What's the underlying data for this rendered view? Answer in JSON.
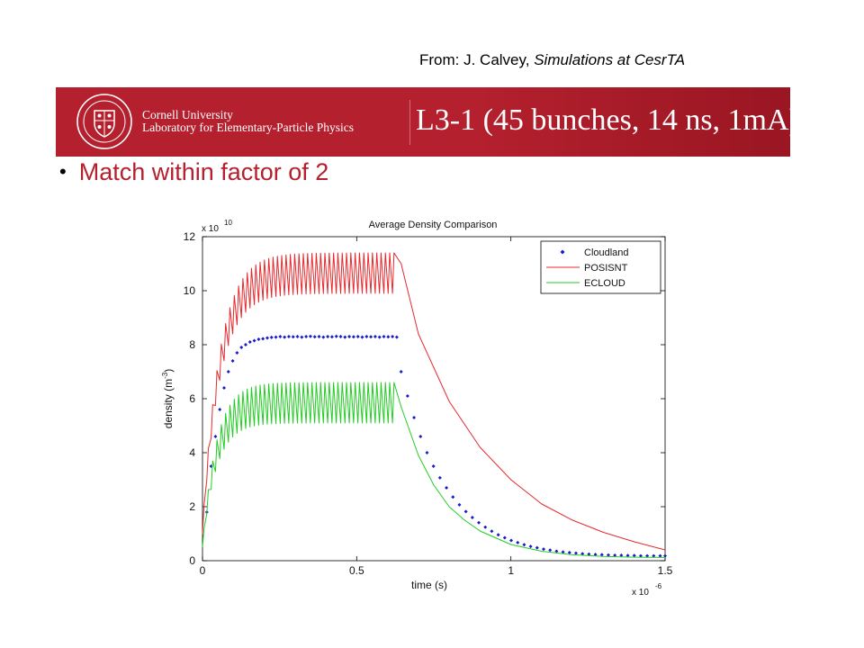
{
  "credit": {
    "prefix": "From: J. Calvey, ",
    "work": "Simulations at CesrTA"
  },
  "banner": {
    "university": "Cornell University",
    "lab": "Laboratory for Elementary-Particle Physics",
    "title": "L3-1 (45 bunches, 14 ns, 1mA)",
    "color": "#b5202e"
  },
  "bullet": "Match within factor of 2",
  "chart_data": {
    "type": "line",
    "title": "Average Density Comparison",
    "xlabel": "time (s)",
    "ylabel": "density (m",
    "ylabel_sup": "-3",
    "ylabel_end": ")",
    "x_multiplier": {
      "base": "x 10",
      "exp": "-6"
    },
    "y_multiplier": {
      "base": "x 10",
      "exp": "10"
    },
    "xlim": [
      0,
      1.5e-06
    ],
    "ylim": [
      0,
      120000000000.0
    ],
    "x_ticks": [
      0,
      0.5,
      1,
      1.5
    ],
    "x_tick_labels": [
      "0",
      "0.5",
      "1",
      "1.5"
    ],
    "y_ticks": [
      0,
      2,
      4,
      6,
      8,
      10,
      12
    ],
    "y_tick_labels": [
      "0",
      "2",
      "4",
      "6",
      "8",
      "10",
      "12"
    ],
    "grid": false,
    "legend_position": "top-right",
    "bunch_spacing_s": 1.4e-08,
    "n_bunches": 45,
    "series": [
      {
        "name": "Cloudland",
        "style": "markers",
        "color": "#1a1acc",
        "x": [
          1.4e-08,
          2.8e-08,
          4.2e-08,
          5.6e-08,
          7e-08,
          8.4e-08,
          9.8e-08,
          1.12e-07,
          1.26e-07,
          1.4e-07,
          1.54e-07,
          1.68e-07,
          1.82e-07,
          1.96e-07,
          2.1e-07,
          2.24e-07,
          2.38e-07,
          2.52e-07,
          2.66e-07,
          2.8e-07,
          2.94e-07,
          3.08e-07,
          3.22e-07,
          3.36e-07,
          3.5e-07,
          3.64e-07,
          3.78e-07,
          3.92e-07,
          4.06e-07,
          4.2e-07,
          4.34e-07,
          4.48e-07,
          4.62e-07,
          4.76e-07,
          4.9e-07,
          5.04e-07,
          5.18e-07,
          5.32e-07,
          5.46e-07,
          5.6e-07,
          5.74e-07,
          5.88e-07,
          6.02e-07,
          6.16e-07,
          6.3e-07,
          6.44e-07,
          6.65e-07,
          6.86e-07,
          7.07e-07,
          7.28e-07,
          7.49e-07,
          7.7e-07,
          7.91e-07,
          8.12e-07,
          8.33e-07,
          8.54e-07,
          8.75e-07,
          8.96e-07,
          9.17e-07,
          9.38e-07,
          9.59e-07,
          9.8e-07,
          1.001e-06,
          1.022e-06,
          1.043e-06,
          1.064e-06,
          1.085e-06,
          1.106e-06,
          1.127e-06,
          1.148e-06,
          1.169e-06,
          1.19e-06,
          1.211e-06,
          1.232e-06,
          1.253e-06,
          1.274e-06,
          1.295e-06,
          1.316e-06,
          1.337e-06,
          1.358e-06,
          1.379e-06,
          1.4e-06,
          1.421e-06,
          1.442e-06,
          1.463e-06,
          1.484e-06,
          1.5e-06
        ],
        "y": [
          18000000000.0,
          35000000000.0,
          46000000000.0,
          56000000000.0,
          64000000000.0,
          70000000000.0,
          74000000000.0,
          77000000000.0,
          79000000000.0,
          80000000000.0,
          81000000000.0,
          81500000000.0,
          82000000000.0,
          82200000000.0,
          82500000000.0,
          82700000000.0,
          82800000000.0,
          83000000000.0,
          82800000000.0,
          83000000000.0,
          82900000000.0,
          83000000000.0,
          82800000000.0,
          83000000000.0,
          83100000000.0,
          82900000000.0,
          83000000000.0,
          82800000000.0,
          83000000000.0,
          82900000000.0,
          83100000000.0,
          83000000000.0,
          82800000000.0,
          83000000000.0,
          82900000000.0,
          83000000000.0,
          82800000000.0,
          83000000000.0,
          82900000000.0,
          83000000000.0,
          82800000000.0,
          83000000000.0,
          82900000000.0,
          83000000000.0,
          82800000000.0,
          70000000000.0,
          61000000000.0,
          53000000000.0,
          46000000000.0,
          40000000000.0,
          35000000000.0,
          30700000000.0,
          27000000000.0,
          23600000000.0,
          20700000000.0,
          18200000000.0,
          16000000000.0,
          14100000000.0,
          12400000000.0,
          10900000000.0,
          9600000000.0,
          8500000000.0,
          7500000000.0,
          6700000000.0,
          5900000000.0,
          5300000000.0,
          4800000000.0,
          4300000000.0,
          3900000000.0,
          3500000000.0,
          3200000000.0,
          3000000000.0,
          2800000000.0,
          2600000000.0,
          2400000000.0,
          2300000000.0,
          2200000000.0,
          2100000000.0,
          2000000000.0,
          2000000000.0,
          1900000000.0,
          1900000000.0,
          1800000000.0,
          1800000000.0,
          1800000000.0,
          1800000000.0,
          1800000000.0
        ]
      },
      {
        "name": "POSISNT",
        "style": "line",
        "color": "#e8282c",
        "plateau_max": 114000000000.0,
        "plateau_min": 99000000000.0,
        "rise_tau_s": 5.5e-08,
        "decay_x": [
          6.44e-07,
          7e-07,
          8e-07,
          9e-07,
          1e-06,
          1.1e-06,
          1.2e-06,
          1.3e-06,
          1.4e-06,
          1.5e-06
        ],
        "decay_y": [
          110000000000.0,
          84000000000.0,
          59000000000.0,
          42000000000.0,
          30000000000.0,
          21000000000.0,
          15000000000.0,
          10500000000.0,
          7000000000.0,
          4000000000.0
        ]
      },
      {
        "name": "ECLOUD",
        "style": "line",
        "color": "#22cc22",
        "plateau_max": 66000000000.0,
        "plateau_min": 51000000000.0,
        "rise_tau_s": 4.5e-08,
        "decay_x": [
          6.44e-07,
          7e-07,
          7.5e-07,
          8e-07,
          8.5e-07,
          9e-07,
          1e-06,
          1.1e-06,
          1.2e-06,
          1.3e-06,
          1.4e-06,
          1.5e-06
        ],
        "decay_y": [
          57000000000.0,
          39000000000.0,
          28000000000.0,
          20000000000.0,
          15000000000.0,
          11000000000.0,
          6000000000.0,
          3500000000.0,
          2200000000.0,
          1600000000.0,
          1300000000.0,
          1200000000.0
        ]
      }
    ]
  }
}
